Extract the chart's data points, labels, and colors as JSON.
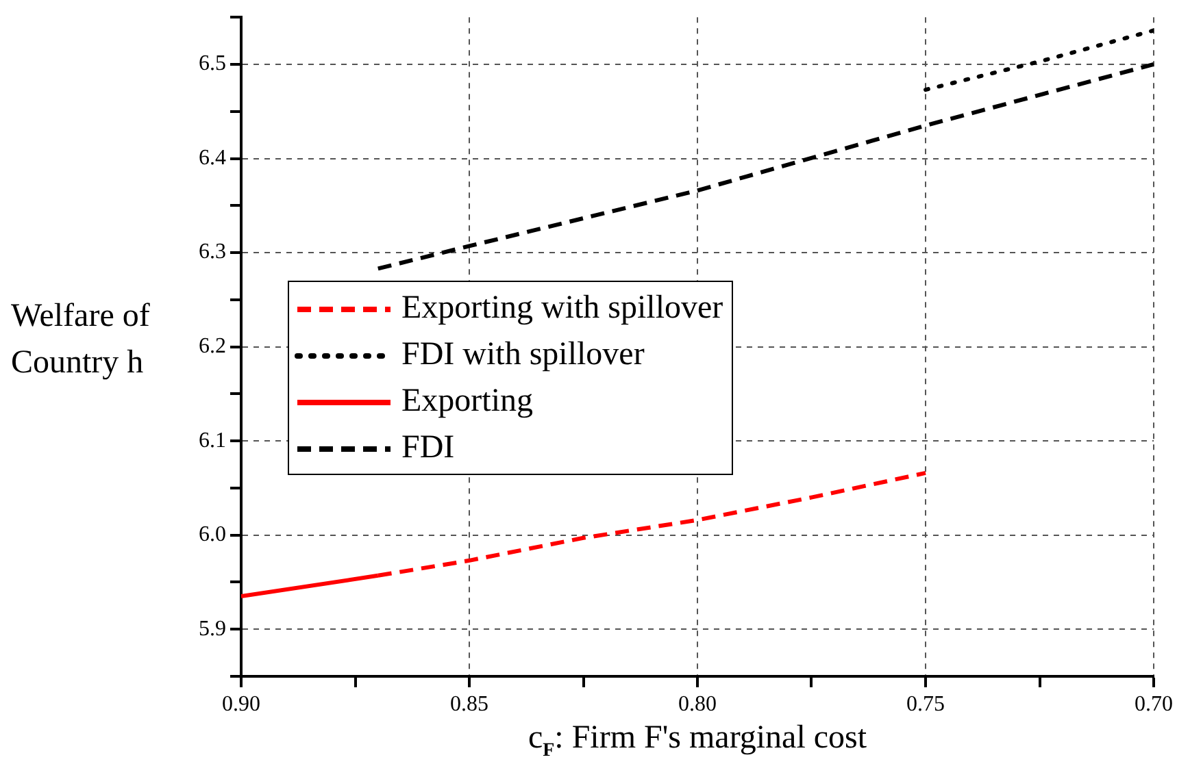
{
  "chart_data": {
    "type": "line",
    "xlabel": "c$_{F}$: Firm F's marginal cost",
    "ylabel": "Welfare of Country h",
    "series": [
      {
        "name": "Exporting with spillover",
        "color": "#ff0000",
        "line_style": "dashed",
        "x": [
          0.87,
          0.85,
          0.825,
          0.8,
          0.775,
          0.75
        ],
        "values": [
          5.957,
          5.973,
          5.997,
          6.016,
          6.04,
          6.066
        ]
      },
      {
        "name": "FDI with spillover",
        "color": "#000000",
        "line_style": "dotted",
        "x": [
          0.75,
          0.725,
          0.7
        ],
        "values": [
          6.473,
          6.503,
          6.536
        ]
      },
      {
        "name": "Exporting",
        "color": "#ff0000",
        "line_style": "solid",
        "x": [
          0.9,
          0.87
        ],
        "values": [
          5.935,
          5.957
        ]
      },
      {
        "name": "FDI",
        "color": "#000000",
        "line_style": "dashed",
        "x": [
          0.87,
          0.85,
          0.8,
          0.75,
          0.7
        ],
        "values": [
          6.283,
          6.307,
          6.366,
          6.435,
          6.5
        ]
      }
    ],
    "xlim": [
      0.9,
      0.7
    ],
    "xticks": [
      {
        "value": 0.9,
        "label": "0.90"
      },
      {
        "value": 0.875,
        "label": null
      },
      {
        "value": 0.85,
        "label": "0.85"
      },
      {
        "value": 0.825,
        "label": null
      },
      {
        "value": 0.8,
        "label": "0.80"
      },
      {
        "value": 0.775,
        "label": null
      },
      {
        "value": 0.75,
        "label": "0.75"
      },
      {
        "value": 0.725,
        "label": null
      },
      {
        "value": 0.7,
        "label": "0.70"
      }
    ],
    "ylim": [
      5.85,
      6.55
    ],
    "yticks": [
      {
        "value": 5.85,
        "label": null
      },
      5.9,
      {
        "value": 5.95,
        "label": null
      },
      {
        "value": 6.0,
        "label": "6.0"
      },
      {
        "value": 6.05,
        "label": null
      },
      6.1,
      {
        "value": 6.15,
        "label": null
      },
      6.2,
      {
        "value": 6.25,
        "label": null
      },
      6.3,
      {
        "value": 6.35,
        "label": null
      },
      6.4,
      {
        "value": 6.45,
        "label": null
      },
      6.5,
      {
        "value": 6.55,
        "label": null
      }
    ],
    "grid": true,
    "legend": "left",
    "marker": "none"
  }
}
